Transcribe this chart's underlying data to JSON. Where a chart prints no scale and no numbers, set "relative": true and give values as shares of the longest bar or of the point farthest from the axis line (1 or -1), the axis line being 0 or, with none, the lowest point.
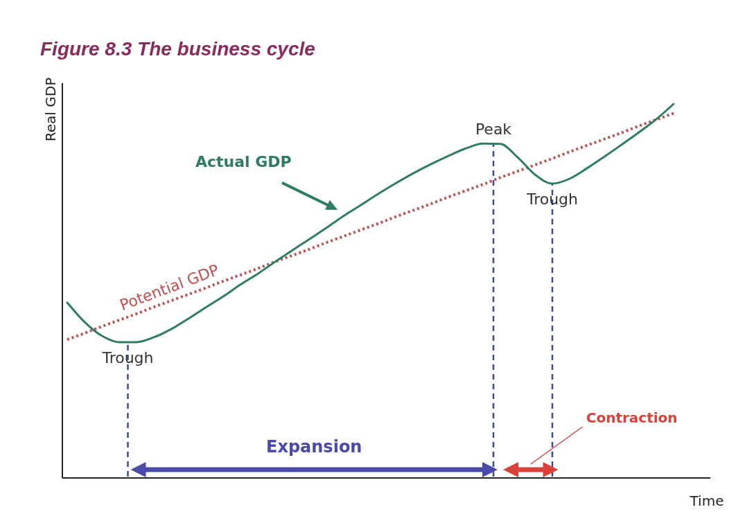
{
  "chart_data": {
    "type": "line",
    "title": "Figure 8.3  The business cycle",
    "xlabel": "Time",
    "ylabel": "Real GDP",
    "relative": true,
    "marker": "none",
    "annotations": [
      "Trough",
      "Peak",
      "Trough",
      "Expansion",
      "Contraction"
    ],
    "categories": [
      null,
      null,
      null,
      null,
      null,
      null,
      null,
      null,
      null,
      null,
      null,
      null,
      null,
      null,
      null,
      null,
      null,
      null,
      null,
      null,
      null,
      null,
      null,
      null,
      null,
      null,
      null,
      null,
      null,
      null,
      null,
      null,
      null,
      null,
      null,
      null
    ],
    "series": [
      {
        "name": "Actual GDP",
        "color": "#2e7d62",
        "line_style": "solid",
        "values": [
          0.469,
          0.417,
          0.38,
          0.363,
          0.363,
          0.376,
          0.398,
          0.426,
          0.456,
          0.485,
          0.517,
          0.546,
          0.578,
          0.609,
          0.639,
          0.67,
          0.702,
          0.731,
          0.761,
          0.789,
          0.815,
          0.839,
          0.861,
          0.881,
          0.894,
          0.893,
          0.857,
          0.811,
          0.787,
          0.8,
          0.828,
          0.859,
          0.891,
          0.924,
          0.959,
          1.0
        ]
      },
      {
        "name": "Potential GDP",
        "color": "#c0504d",
        "line_style": "dotted",
        "values": [
          0.37,
          0.387,
          0.405,
          0.422,
          0.439,
          0.457,
          0.474,
          0.491,
          0.508,
          0.526,
          0.543,
          0.56,
          0.578,
          0.595,
          0.612,
          0.63,
          0.647,
          0.664,
          0.681,
          0.699,
          0.716,
          0.733,
          0.751,
          0.768,
          0.785,
          0.803,
          0.82,
          0.837,
          0.854,
          0.872,
          0.889,
          0.906,
          0.923,
          0.941,
          0.958,
          0.975
        ]
      }
    ]
  }
}
